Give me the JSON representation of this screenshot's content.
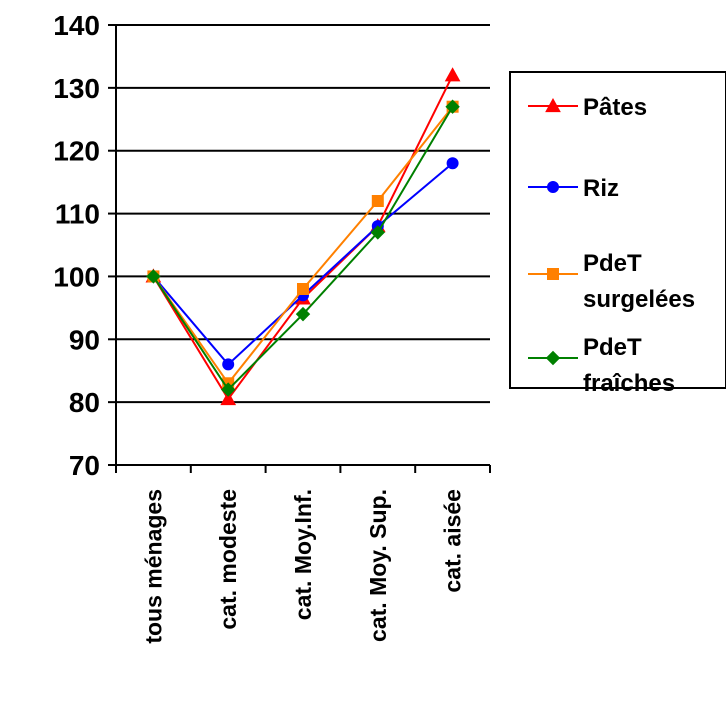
{
  "chart_data": {
    "type": "line",
    "categories": [
      "tous ménages",
      "cat. modeste",
      "cat. Moy.Inf.",
      "cat. Moy. Sup.",
      "cat. aisée"
    ],
    "ylim": [
      70,
      140
    ],
    "yticks": [
      70,
      80,
      90,
      100,
      110,
      120,
      130,
      140
    ],
    "grid": true,
    "legend_position": "right",
    "series": [
      {
        "name": "Pâtes",
        "legend_lines": [
          "Pâtes"
        ],
        "color": "#ff0000",
        "marker": "triangle",
        "values": [
          100,
          80.5,
          96.5,
          108,
          132
        ]
      },
      {
        "name": "Riz",
        "legend_lines": [
          "Riz"
        ],
        "color": "#0000ff",
        "marker": "circle",
        "values": [
          100,
          86,
          97,
          108,
          118
        ]
      },
      {
        "name": "PdeT surgelées",
        "legend_lines": [
          "PdeT",
          "surgelées"
        ],
        "color": "#ff8000",
        "marker": "square",
        "values": [
          100,
          83,
          98,
          112,
          127
        ]
      },
      {
        "name": "PdeT fraîches",
        "legend_lines": [
          "PdeT",
          "fraîches"
        ],
        "color": "#008000",
        "marker": "diamond",
        "values": [
          100,
          82,
          94,
          107,
          127
        ]
      }
    ]
  }
}
